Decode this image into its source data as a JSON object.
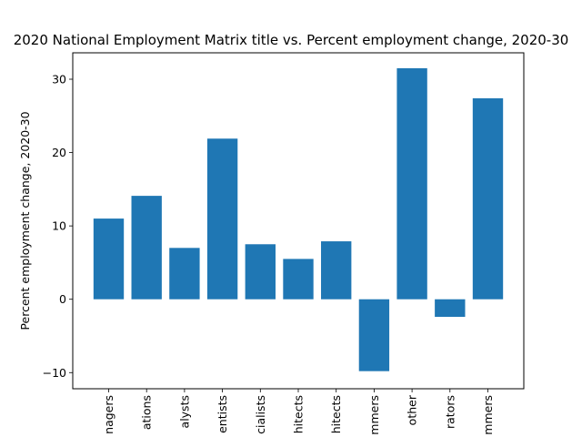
{
  "chart_data": {
    "type": "bar",
    "title": "2020 National Employment Matrix title vs. Percent employment change, 2020-30",
    "xlabel": "",
    "ylabel": "Percent employment change, 2020-30",
    "categories": [
      "nagers",
      "ations",
      "alysts",
      "entists",
      "cialists",
      "hitects",
      "hitects",
      "mmers",
      "other",
      "rators",
      "mmers"
    ],
    "values": [
      11.0,
      14.1,
      7.0,
      21.9,
      7.5,
      5.5,
      7.9,
      -9.8,
      31.5,
      -2.4,
      27.4
    ],
    "yticks": [
      -10,
      0,
      10,
      20,
      30
    ],
    "ylim": [
      -12.2,
      33.6
    ],
    "bar_color": "#1f77b4",
    "grid": false,
    "legend": "none"
  }
}
